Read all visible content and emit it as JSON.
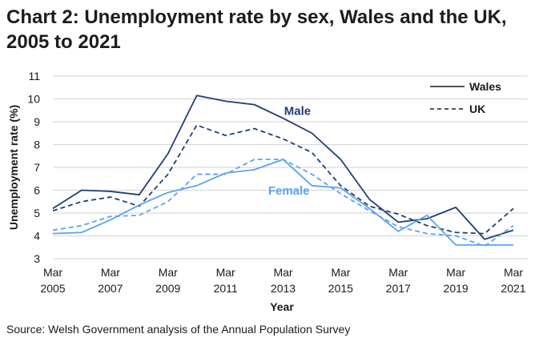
{
  "chart_data": {
    "type": "line",
    "title": "Chart 2: Unemployment rate by sex, Wales and the UK, 2005 to 2021",
    "xlabel": "Year",
    "ylabel": "Unemployment rate (%)",
    "ylim": [
      3,
      11
    ],
    "yticks": [
      3,
      4,
      5,
      6,
      7,
      8,
      9,
      10,
      11
    ],
    "grid": "horizontal",
    "x": [
      2005,
      2006,
      2007,
      2008,
      2009,
      2010,
      2011,
      2012,
      2013,
      2014,
      2015,
      2016,
      2017,
      2018,
      2019,
      2020,
      2021
    ],
    "xtick_labels": [
      {
        "year": 2005,
        "line1": "Mar",
        "line2": "2005"
      },
      {
        "year": 2007,
        "line1": "Mar",
        "line2": "2007"
      },
      {
        "year": 2009,
        "line1": "Mar",
        "line2": "2009"
      },
      {
        "year": 2011,
        "line1": "Mar",
        "line2": "2011"
      },
      {
        "year": 2013,
        "line1": "Mar",
        "line2": "2013"
      },
      {
        "year": 2015,
        "line1": "Mar",
        "line2": "2015"
      },
      {
        "year": 2017,
        "line1": "Mar",
        "line2": "2017"
      },
      {
        "year": 2019,
        "line1": "Mar",
        "line2": "2019"
      },
      {
        "year": 2021,
        "line1": "Mar",
        "line2": "2021"
      }
    ],
    "series": [
      {
        "name": "Wales Male",
        "area": "Wales",
        "sex": "Male",
        "color": "#1f3f73",
        "dashed": false,
        "values": [
          5.2,
          6.0,
          5.95,
          5.8,
          7.6,
          10.15,
          9.9,
          9.75,
          9.15,
          8.5,
          7.35,
          5.6,
          4.6,
          4.75,
          5.25,
          3.85,
          4.25
        ]
      },
      {
        "name": "UK Male",
        "area": "UK",
        "sex": "Male",
        "color": "#1f3f73",
        "dashed": true,
        "values": [
          5.1,
          5.5,
          5.7,
          5.3,
          6.7,
          8.85,
          8.4,
          8.7,
          8.25,
          7.65,
          6.2,
          5.3,
          4.95,
          4.45,
          4.15,
          4.1,
          5.2
        ]
      },
      {
        "name": "Wales Female",
        "area": "Wales",
        "sex": "Female",
        "color": "#5ba3f0",
        "dashed": false,
        "values": [
          4.1,
          4.15,
          4.7,
          5.35,
          5.9,
          6.2,
          6.75,
          6.9,
          7.35,
          6.2,
          6.1,
          5.2,
          4.2,
          4.9,
          3.6,
          3.6,
          3.6
        ]
      },
      {
        "name": "UK Female",
        "area": "UK",
        "sex": "Female",
        "color": "#5ba3f0",
        "dashed": true,
        "values": [
          4.25,
          4.45,
          4.85,
          4.9,
          5.5,
          6.7,
          6.7,
          7.35,
          7.35,
          6.7,
          5.85,
          5.1,
          4.4,
          4.1,
          4.0,
          3.55,
          4.45
        ]
      }
    ],
    "legend": {
      "placement": "top-right",
      "entries": [
        {
          "label": "Wales",
          "style": "solid"
        },
        {
          "label": "UK",
          "style": "dashed"
        }
      ]
    },
    "annotations": [
      {
        "text": "Male",
        "color": "#1f3f73",
        "x": 2013.5,
        "y": 9.3
      },
      {
        "text": "Female",
        "color": "#5ba3f0",
        "x": 2013.2,
        "y": 5.8
      }
    ]
  },
  "footer": {
    "source": "Source: Welsh Government analysis of the Annual Population Survey"
  },
  "colors": {
    "gridline": "#d9d9d9",
    "male": "#1f3f73",
    "female": "#5ba3f0"
  }
}
